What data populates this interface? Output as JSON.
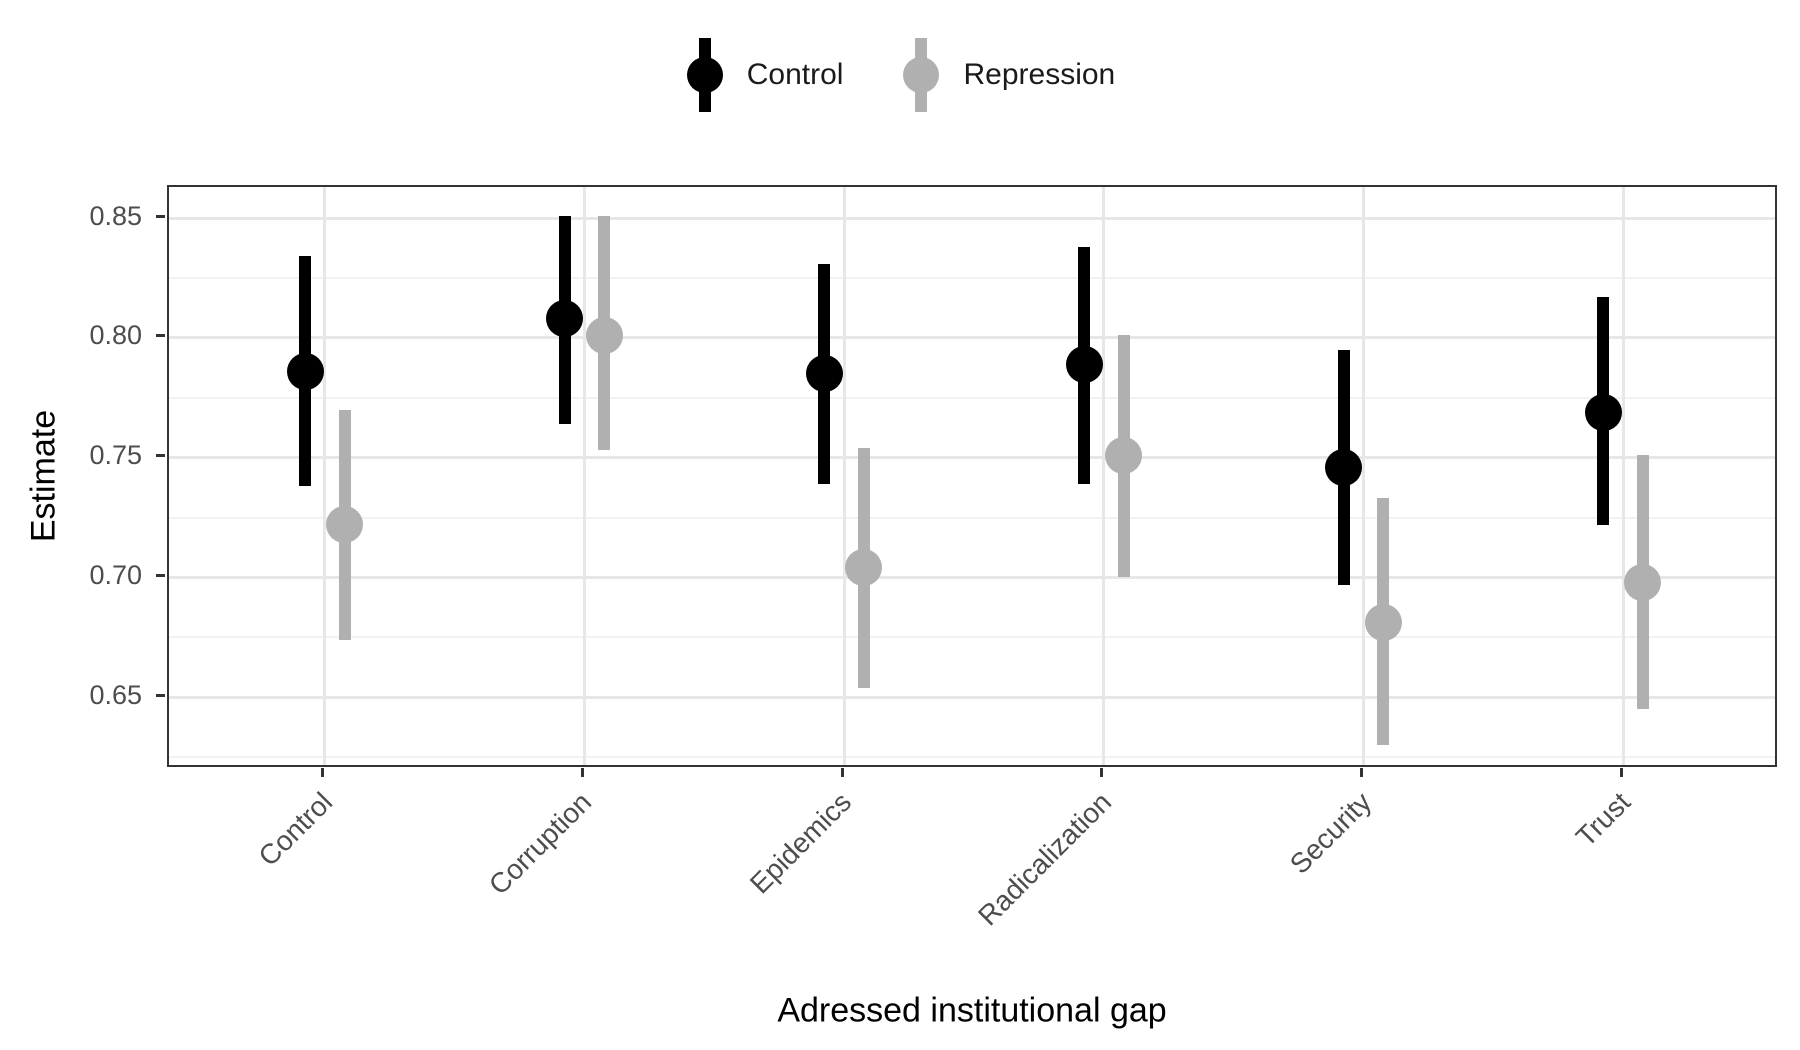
{
  "chart_data": {
    "type": "scatter",
    "subtype": "pointrange-dodged",
    "title": "",
    "xlabel": "Adressed institutional gap",
    "ylabel": "Estimate",
    "categories": [
      "Control",
      "Corruption",
      "Epidemics",
      "Radicalization",
      "Security",
      "Trust"
    ],
    "series": [
      {
        "name": "Control",
        "color": "#000000",
        "estimates": [
          0.786,
          0.808,
          0.785,
          0.789,
          0.746,
          0.769
        ],
        "ci_low": [
          0.738,
          0.764,
          0.739,
          0.739,
          0.697,
          0.722
        ],
        "ci_high": [
          0.834,
          0.851,
          0.831,
          0.838,
          0.795,
          0.817
        ]
      },
      {
        "name": "Repression",
        "color": "#b0b0b0",
        "estimates": [
          0.722,
          0.801,
          0.704,
          0.751,
          0.681,
          0.698
        ],
        "ci_low": [
          0.674,
          0.753,
          0.654,
          0.7,
          0.63,
          0.645
        ],
        "ci_high": [
          0.77,
          0.851,
          0.754,
          0.801,
          0.733,
          0.751
        ]
      }
    ],
    "y_ticks": [
      0.85,
      0.8,
      0.75,
      0.7,
      0.65
    ],
    "y_tick_labels": [
      "0.85",
      "0.80",
      "0.75",
      "0.70",
      "0.65"
    ],
    "y_minor_ticks": [
      0.825,
      0.775,
      0.725,
      0.675,
      0.625
    ],
    "ylim": [
      0.62,
      0.863
    ],
    "grid": "major+minor",
    "legend_position": "top",
    "background_color": "#ffffff",
    "panel_border_color": "#333333",
    "grid_major_color": "#e7e7e7",
    "grid_minor_color": "#f2f2f2",
    "tick_label_color": "#4d4d4d"
  }
}
